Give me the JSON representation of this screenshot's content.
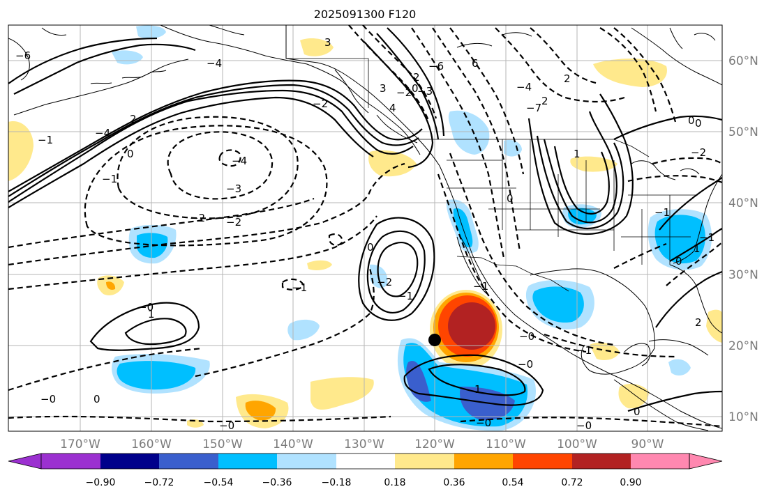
{
  "title": "2025091300 F120",
  "map": {
    "lon_labels": [
      "170°W",
      "160°W",
      "150°W",
      "140°W",
      "130°W",
      "120°W",
      "110°W",
      "100°W",
      "90°W"
    ],
    "lat_labels": [
      "60°N",
      "50°N",
      "40°N",
      "30°N",
      "20°N",
      "10°N"
    ],
    "extent": {
      "lon_min": -180,
      "lon_max": -80,
      "lat_min": 8,
      "lat_max": 66
    },
    "storm_marker": {
      "lon": -120,
      "lat": 21
    }
  },
  "colorbar": {
    "ticks": [
      "−0.90",
      "−0.72",
      "−0.54",
      "−0.36",
      "−0.18",
      "0.18",
      "0.36",
      "0.54",
      "0.72",
      "0.90"
    ],
    "colors": [
      "#9b30d0",
      "#00008b",
      "#3a5fcd",
      "#00bfff",
      "#b0e2ff",
      "#ffffff",
      "#ffe98c",
      "#ffa500",
      "#ff4500",
      "#b22222",
      "#ff88b0"
    ]
  },
  "contour_labels": [
    "3",
    "−6",
    "−4",
    "3",
    "−2",
    "−6",
    "6",
    "−3",
    "2",
    "0",
    "−4",
    "4",
    "2",
    "−7",
    "2",
    "0",
    "−2",
    "−1",
    "−4",
    "−3",
    "−2",
    "0",
    "−4",
    "2",
    "0",
    "0",
    "−2",
    "−2",
    "−1",
    "1",
    "−1",
    "1",
    "−1",
    "−1",
    "−1",
    "−2",
    "0",
    "−1",
    "1",
    "−0",
    "0",
    "2",
    "−0",
    "1",
    "−1",
    "−0",
    "0",
    "−0",
    "0",
    "−0"
  ]
}
